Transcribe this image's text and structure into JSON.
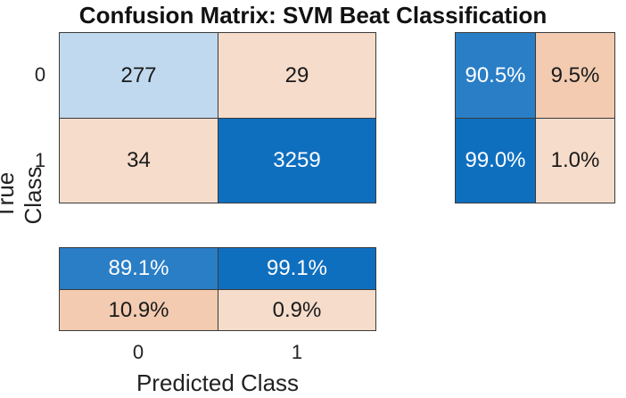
{
  "chart_data": {
    "type": "heatmap",
    "title": "Confusion Matrix: SVM Beat Classification",
    "xlabel": "Predicted Class",
    "ylabel": "True Class",
    "x_categories": [
      "0",
      "1"
    ],
    "y_categories": [
      "0",
      "1"
    ],
    "matrix": [
      [
        277,
        29
      ],
      [
        34,
        3259
      ]
    ],
    "row_summary": {
      "values": [
        [
          "90.5%",
          "9.5%"
        ],
        [
          "99.0%",
          "1.0%"
        ]
      ]
    },
    "column_summary": {
      "values": [
        [
          "89.1%",
          "99.1%"
        ],
        [
          "10.9%",
          "0.9%"
        ]
      ]
    },
    "colors": {
      "correct_dark": "#0f6fbf",
      "correct_light": "#c0d9ee",
      "correct_mid": "#2a7ec6",
      "incorrect_light": "#f6dccb",
      "incorrect_mid": "#f2cbb1",
      "text_dark": "#1a1a1a",
      "text_light": "#ffffff"
    }
  }
}
